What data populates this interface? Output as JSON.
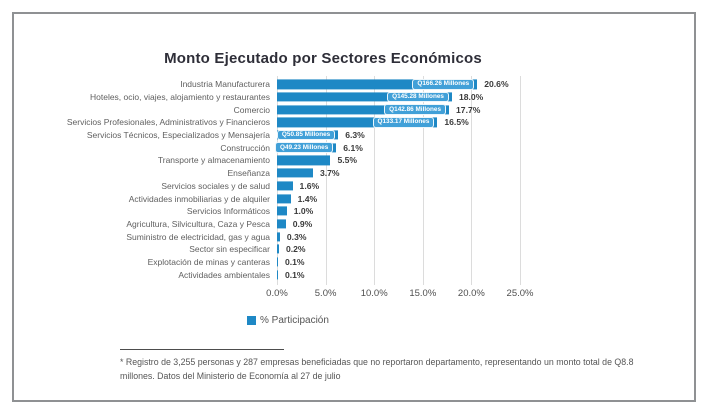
{
  "title": "Monto Ejecutado por Sectores Económicos",
  "chart_data": {
    "type": "bar",
    "orientation": "horizontal",
    "title": "Monto Ejecutado por Sectores Económicos",
    "xlabel": "",
    "ylabel": "",
    "xlim": [
      0,
      25
    ],
    "x_tick_labels": [
      "0.0%",
      "5.0%",
      "10.0%",
      "15.0%",
      "20.0%",
      "25.0%"
    ],
    "grid": "vertical",
    "legend_position": "bottom",
    "series_name": "% Participación",
    "bar_color": "#1E88C5",
    "chip_color": "#41A0D8",
    "bars": [
      {
        "category": "Industria Manufacturera",
        "value": 20.6,
        "value_label": "20.6%",
        "annotation": "Q166.26 Millones"
      },
      {
        "category": "Hoteles, ocio, viajes, alojamiento y restaurantes",
        "value": 18.0,
        "value_label": "18.0%",
        "annotation": "Q145.28 Millones"
      },
      {
        "category": "Comercio",
        "value": 17.7,
        "value_label": "17.7%",
        "annotation": "Q142.86 Millones"
      },
      {
        "category": "Servicios Profesionales, Administrativos y Financieros",
        "value": 16.5,
        "value_label": "16.5%",
        "annotation": "Q133.17 Millones"
      },
      {
        "category": "Servicios Técnicos, Especializados y Mensajería",
        "value": 6.3,
        "value_label": "6.3%",
        "annotation": "Q50.85 Millones"
      },
      {
        "category": "Construcción",
        "value": 6.1,
        "value_label": "6.1%",
        "annotation": "Q49.23 Millones"
      },
      {
        "category": "Transporte y almacenamiento",
        "value": 5.5,
        "value_label": "5.5%",
        "annotation": null
      },
      {
        "category": "Enseñanza",
        "value": 3.7,
        "value_label": "3.7%",
        "annotation": null
      },
      {
        "category": "Servicios sociales y de salud",
        "value": 1.6,
        "value_label": "1.6%",
        "annotation": null
      },
      {
        "category": "Actividades inmobiliarias y de alquiler",
        "value": 1.4,
        "value_label": "1.4%",
        "annotation": null
      },
      {
        "category": "Servicios Informáticos",
        "value": 1.0,
        "value_label": "1.0%",
        "annotation": null
      },
      {
        "category": "Agricultura, Silvicultura, Caza y Pesca",
        "value": 0.9,
        "value_label": "0.9%",
        "annotation": null
      },
      {
        "category": "Suministro de electricidad, gas y agua",
        "value": 0.3,
        "value_label": "0.3%",
        "annotation": null
      },
      {
        "category": "Sector sin especificar",
        "value": 0.2,
        "value_label": "0.2%",
        "annotation": null
      },
      {
        "category": "Explotación de minas y canteras",
        "value": 0.1,
        "value_label": "0.1%",
        "annotation": null
      },
      {
        "category": "Actividades ambientales",
        "value": 0.1,
        "value_label": "0.1%",
        "annotation": null
      }
    ]
  },
  "legend": {
    "label": "% Participación"
  },
  "footnote": "* Registro de 3,255 personas y 287 empresas beneficiadas que no reportaron departamento, representando un monto total de Q8.8 millones. Datos del Ministerio de Economía al 27 de julio"
}
